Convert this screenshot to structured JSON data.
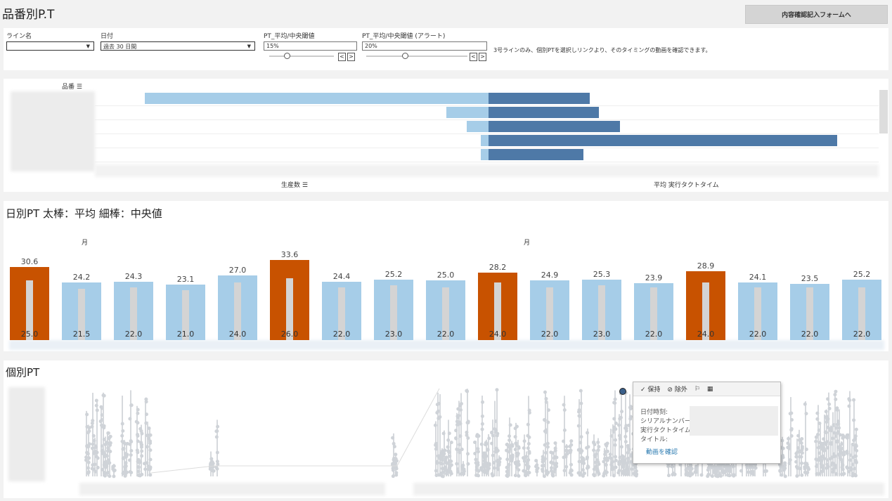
{
  "header": {
    "title": "品番別P.T",
    "form_button": "内容確認記入フォームへ"
  },
  "filters": {
    "line": {
      "label": "ライン名",
      "value": ""
    },
    "date": {
      "label": "日付",
      "value": "過去 30 日間"
    },
    "threshold": {
      "label": "PT_平均/中央閾値",
      "value": "15%"
    },
    "alert": {
      "label": "PT_平均/中央閾値 (アラート)",
      "value": "20%"
    },
    "note": "3号ラインのみ、個別PTを選択しリンクより、そのタイミングの動画を確認できます。",
    "prev": "<",
    "next": ">"
  },
  "chart_data": [
    {
      "type": "bar",
      "title": "品番別P.T",
      "row_header": "品番",
      "xlabel_left": "生産数",
      "xlabel_right": "平均 実行タクトタイム",
      "series": [
        {
          "name": "生産数",
          "values": [
            489,
            60,
            31,
            11,
            11
          ]
        },
        {
          "name": "平均 実行タクトタイム",
          "values": [
            144,
            157,
            187,
            496,
            135
          ]
        }
      ]
    },
    {
      "type": "bar",
      "title": "日別PT 太棒：平均  細棒：中央値",
      "month_label": "月",
      "series": [
        {
          "name": "平均",
          "values": [
            "30.6",
            "24.2",
            "24.3",
            "23.1",
            "27.0",
            "33.6",
            "24.4",
            "25.2",
            "25.0",
            "28.2",
            "24.9",
            "25.3",
            "23.9",
            "28.9",
            "24.1",
            "23.5",
            "25.2"
          ]
        },
        {
          "name": "中央値",
          "values": [
            "25.0",
            "21.5",
            "22.0",
            "21.0",
            "24.0",
            "26.0",
            "22.0",
            "23.0",
            "22.0",
            "24.0",
            "22.0",
            "23.0",
            "22.0",
            "24.0",
            "22.0",
            "22.0",
            "22.0"
          ]
        }
      ],
      "alert": [
        true,
        false,
        false,
        false,
        false,
        true,
        false,
        false,
        false,
        true,
        false,
        false,
        false,
        true,
        false,
        false,
        false
      ],
      "ylim": [
        0,
        36
      ]
    },
    {
      "type": "scatter",
      "title": "個別PT"
    }
  ],
  "colors": {
    "normal": "#a6cde8",
    "alert": "#c85200",
    "median": "#d4d4d4",
    "dark": "#4e79a7"
  },
  "tooltip": {
    "keep": "保持",
    "exclude": "除外",
    "fields": [
      "日付時刻:",
      "シリアルナンバー:",
      "実行タクトタイム:",
      "タイトル:"
    ],
    "link": "動画を確認"
  }
}
